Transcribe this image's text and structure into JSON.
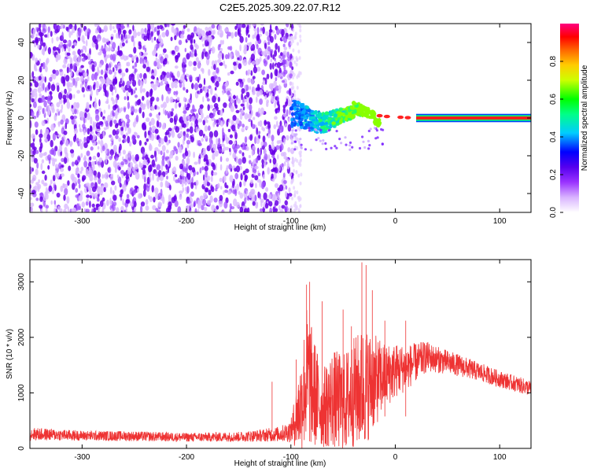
{
  "figure": {
    "title": "C2E5.2025.309.22.07.R12"
  },
  "chart_data": [
    {
      "type": "heatmap",
      "title": "C2E5.2025.309.22.07.R12",
      "xlabel": "Height of straight line (km)",
      "ylabel": "Frequency (Hz)",
      "xlim": [
        -350,
        130
      ],
      "ylim": [
        -50,
        50
      ],
      "x_ticks": [
        -300,
        -200,
        -100,
        0,
        100
      ],
      "y_ticks": [
        -40,
        -20,
        0,
        20,
        40
      ],
      "noise_region_x": [
        -350,
        -100
      ],
      "signal_region_x": [
        -100,
        130
      ],
      "signal_center_hz": 0,
      "grid": false,
      "colorbar": {
        "label": "Normalized spectral amplitude",
        "range": [
          0.0,
          1.0
        ],
        "ticks": [
          0.0,
          0.2,
          0.4,
          0.6,
          0.8
        ],
        "colormap": [
          "#ffffff",
          "#d9b3ff",
          "#7a00e6",
          "#0000ff",
          "#00ffff",
          "#00ff00",
          "#ffff00",
          "#ff8000",
          "#ff0000",
          "#ff0080"
        ]
      }
    },
    {
      "type": "line",
      "xlabel": "Height of straight line (km)",
      "ylabel": "SNR (10 * v/v)",
      "xlim": [
        -350,
        130
      ],
      "ylim": [
        0,
        3400
      ],
      "x_ticks": [
        -300,
        -200,
        -100,
        0,
        100
      ],
      "y_ticks": [
        0,
        1000,
        2000,
        3000
      ],
      "grid": false,
      "line_color": "#ee3333",
      "envelope": {
        "x": [
          -350,
          -300,
          -250,
          -200,
          -150,
          -130,
          -110,
          -100,
          -90,
          -85,
          -80,
          -70,
          -60,
          -50,
          -40,
          -30,
          -20,
          -10,
          0,
          10,
          20,
          30,
          40,
          60,
          80,
          100,
          130
        ],
        "mid": [
          260,
          230,
          220,
          200,
          210,
          230,
          260,
          310,
          800,
          1300,
          1100,
          700,
          900,
          800,
          1000,
          1100,
          1200,
          1300,
          1400,
          1450,
          1550,
          1650,
          1600,
          1500,
          1380,
          1250,
          1080
        ],
        "amp": [
          120,
          90,
          90,
          80,
          90,
          110,
          140,
          200,
          900,
          1300,
          1100,
          700,
          900,
          900,
          1000,
          1100,
          850,
          600,
          500,
          420,
          350,
          280,
          240,
          200,
          170,
          150,
          140
        ]
      },
      "spikes": [
        {
          "x": -118,
          "y": 1200
        },
        {
          "x": -95,
          "y": 1600
        },
        {
          "x": -85,
          "y": 2950
        },
        {
          "x": -82,
          "y": 3000
        },
        {
          "x": -70,
          "y": 2650
        },
        {
          "x": -50,
          "y": 2500
        },
        {
          "x": -42,
          "y": 2200
        },
        {
          "x": -32,
          "y": 3350
        },
        {
          "x": -28,
          "y": 3300
        },
        {
          "x": -22,
          "y": 2850
        },
        {
          "x": -10,
          "y": 2300
        },
        {
          "x": 10,
          "y": 2300
        }
      ]
    }
  ]
}
